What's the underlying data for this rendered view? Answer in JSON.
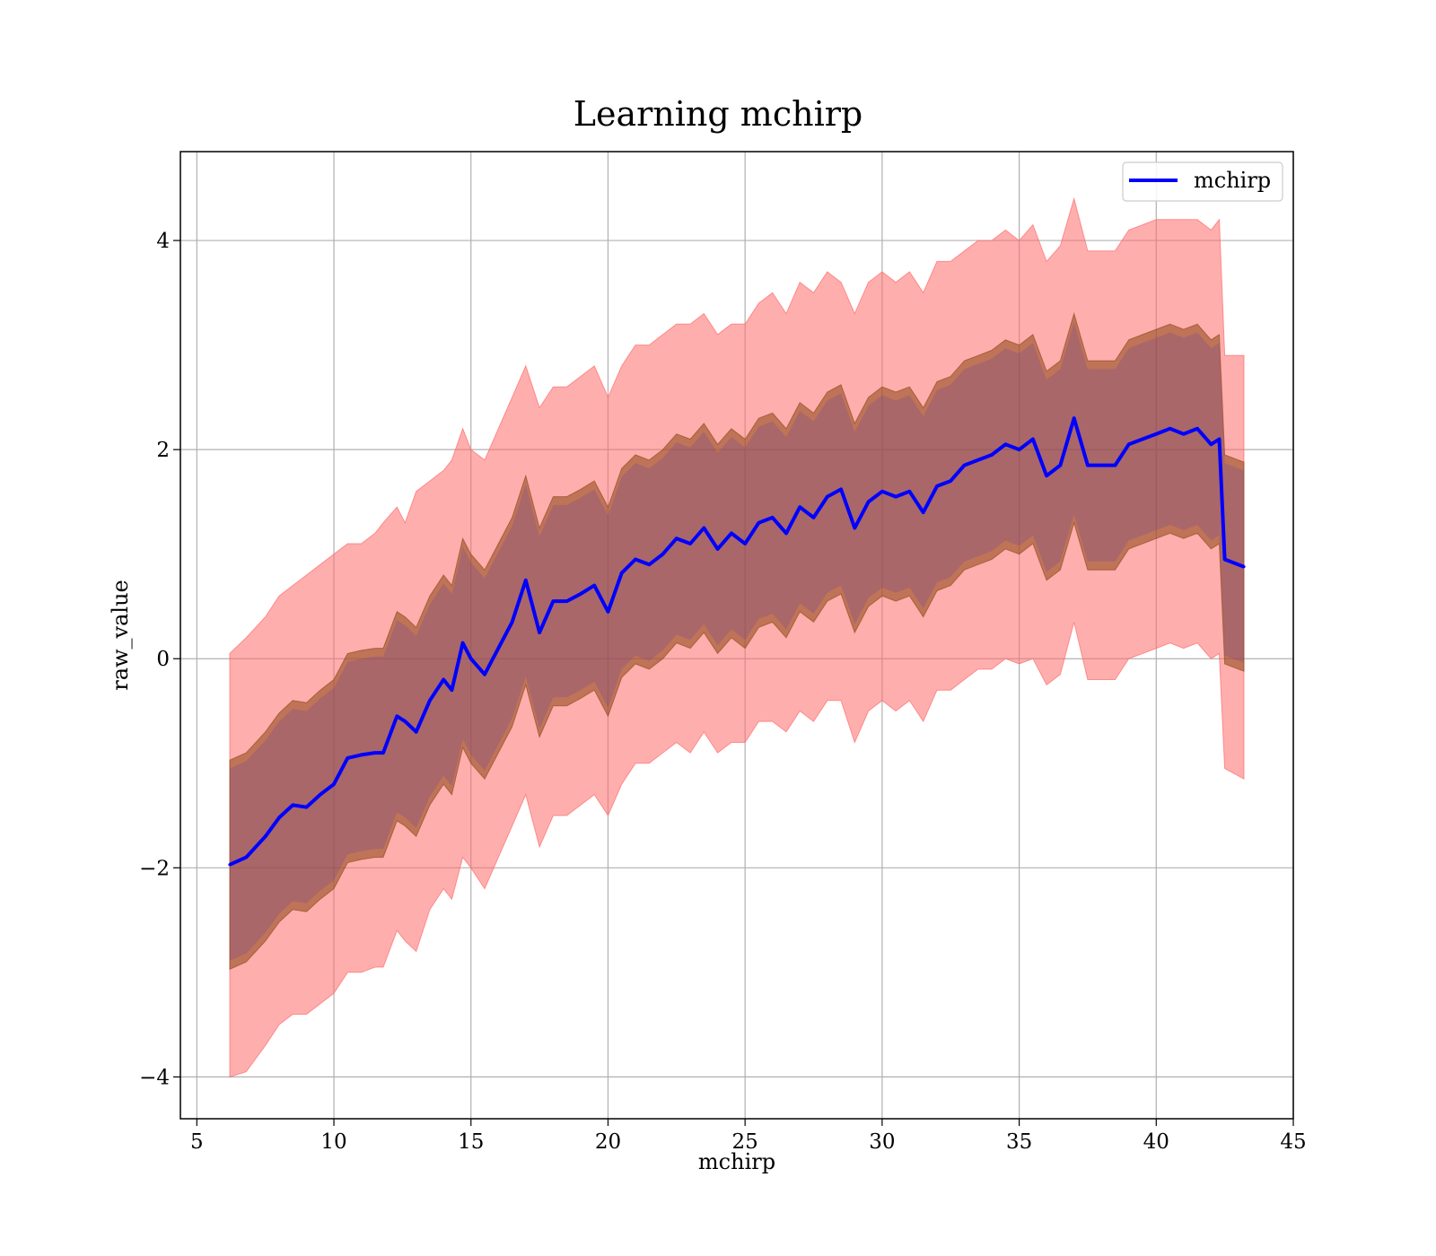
{
  "chart_data": {
    "type": "line",
    "title": "Learning mchirp",
    "xlabel": "mchirp",
    "ylabel": "raw_value",
    "xlim": [
      4.4,
      45
    ],
    "ylim": [
      -4.4,
      4.85
    ],
    "xticks": [
      5,
      10,
      15,
      20,
      25,
      30,
      35,
      40,
      45
    ],
    "xtick_labels": [
      "5",
      "10",
      "15",
      "20",
      "25",
      "30",
      "35",
      "40",
      "45"
    ],
    "yticks": [
      -4,
      -2,
      0,
      2,
      4
    ],
    "ytick_labels": [
      "−4",
      "−2",
      "0",
      "2",
      "4"
    ],
    "grid": true,
    "legend": {
      "placement": "top-right",
      "entries": [
        "mchirp"
      ]
    },
    "colors": {
      "line": "#0000ff",
      "band_outer": "#ff6b6b",
      "band_mid": "#8b4513",
      "band_inner": "#6b3fa0"
    },
    "series": [
      {
        "name": "mchirp",
        "x": [
          6.2,
          6.8,
          7.5,
          8.0,
          8.5,
          9.0,
          9.5,
          10.0,
          10.5,
          11.0,
          11.5,
          11.8,
          12.3,
          12.6,
          13.0,
          13.5,
          14.0,
          14.3,
          14.7,
          15.0,
          15.5,
          16.0,
          16.5,
          17.0,
          17.5,
          18.0,
          18.5,
          19.0,
          19.5,
          20.0,
          20.5,
          21.0,
          21.5,
          22.0,
          22.5,
          23.0,
          23.5,
          24.0,
          24.5,
          25.0,
          25.5,
          26.0,
          26.5,
          27.0,
          27.5,
          28.0,
          28.5,
          29.0,
          29.5,
          30.0,
          30.5,
          31.0,
          31.5,
          32.0,
          32.5,
          33.0,
          33.5,
          34.0,
          34.5,
          35.0,
          35.5,
          36.0,
          36.5,
          37.0,
          37.5,
          38.0,
          38.5,
          39.0,
          39.5,
          40.0,
          40.5,
          41.0,
          41.5,
          42.0,
          42.3,
          42.5,
          43.2
        ],
        "y": [
          -1.97,
          -1.9,
          -1.7,
          -1.52,
          -1.4,
          -1.42,
          -1.3,
          -1.2,
          -0.95,
          -0.92,
          -0.9,
          -0.9,
          -0.55,
          -0.6,
          -0.7,
          -0.4,
          -0.2,
          -0.3,
          0.15,
          0.0,
          -0.15,
          0.1,
          0.35,
          0.75,
          0.25,
          0.55,
          0.55,
          0.62,
          0.7,
          0.45,
          0.82,
          0.95,
          0.9,
          1.0,
          1.15,
          1.1,
          1.25,
          1.05,
          1.2,
          1.1,
          1.3,
          1.35,
          1.2,
          1.45,
          1.35,
          1.55,
          1.62,
          1.25,
          1.5,
          1.6,
          1.55,
          1.6,
          1.4,
          1.65,
          1.7,
          1.85,
          1.9,
          1.95,
          2.05,
          2.0,
          2.1,
          1.75,
          1.85,
          2.3,
          1.85,
          1.85,
          1.85,
          2.05,
          2.1,
          2.15,
          2.2,
          2.15,
          2.2,
          2.05,
          2.1,
          0.95,
          0.88
        ],
        "band_outer_upper": [
          0.05,
          0.2,
          0.4,
          0.6,
          0.7,
          0.8,
          0.9,
          1.0,
          1.1,
          1.1,
          1.2,
          1.3,
          1.45,
          1.3,
          1.6,
          1.7,
          1.8,
          1.9,
          2.2,
          2.0,
          1.9,
          2.2,
          2.5,
          2.8,
          2.4,
          2.6,
          2.6,
          2.7,
          2.8,
          2.5,
          2.8,
          3.0,
          3.0,
          3.1,
          3.2,
          3.2,
          3.3,
          3.1,
          3.2,
          3.2,
          3.4,
          3.5,
          3.3,
          3.6,
          3.5,
          3.7,
          3.6,
          3.3,
          3.6,
          3.7,
          3.6,
          3.7,
          3.5,
          3.8,
          3.8,
          3.9,
          4.0,
          4.0,
          4.1,
          4.0,
          4.15,
          3.8,
          3.95,
          4.4,
          3.9,
          3.9,
          3.9,
          4.1,
          4.15,
          4.2,
          4.2,
          4.2,
          4.2,
          4.1,
          4.2,
          2.9,
          2.9
        ],
        "band_outer_lower": [
          -4.0,
          -3.95,
          -3.7,
          -3.5,
          -3.4,
          -3.4,
          -3.3,
          -3.2,
          -3.0,
          -3.0,
          -2.95,
          -2.95,
          -2.6,
          -2.7,
          -2.8,
          -2.4,
          -2.2,
          -2.3,
          -1.9,
          -2.0,
          -2.2,
          -1.9,
          -1.6,
          -1.3,
          -1.8,
          -1.5,
          -1.5,
          -1.4,
          -1.3,
          -1.5,
          -1.2,
          -1.0,
          -1.0,
          -0.9,
          -0.8,
          -0.9,
          -0.7,
          -0.9,
          -0.8,
          -0.8,
          -0.6,
          -0.6,
          -0.7,
          -0.5,
          -0.6,
          -0.4,
          -0.4,
          -0.8,
          -0.5,
          -0.4,
          -0.5,
          -0.4,
          -0.6,
          -0.3,
          -0.3,
          -0.2,
          -0.1,
          -0.1,
          0.0,
          -0.05,
          0.0,
          -0.25,
          -0.15,
          0.35,
          -0.2,
          -0.2,
          -0.2,
          0.0,
          0.05,
          0.1,
          0.15,
          0.1,
          0.15,
          0.0,
          0.05,
          -1.05,
          -1.15
        ],
        "band_mid_upper": [
          -0.97,
          -0.9,
          -0.7,
          -0.52,
          -0.4,
          -0.42,
          -0.3,
          -0.2,
          0.05,
          0.08,
          0.1,
          0.1,
          0.45,
          0.4,
          0.3,
          0.6,
          0.8,
          0.7,
          1.15,
          1.0,
          0.85,
          1.1,
          1.35,
          1.75,
          1.25,
          1.55,
          1.55,
          1.62,
          1.7,
          1.45,
          1.82,
          1.95,
          1.9,
          2.0,
          2.15,
          2.1,
          2.25,
          2.05,
          2.2,
          2.1,
          2.3,
          2.35,
          2.2,
          2.45,
          2.35,
          2.55,
          2.62,
          2.25,
          2.5,
          2.6,
          2.55,
          2.6,
          2.4,
          2.65,
          2.7,
          2.85,
          2.9,
          2.95,
          3.05,
          3.0,
          3.1,
          2.75,
          2.85,
          3.3,
          2.85,
          2.85,
          2.85,
          3.05,
          3.1,
          3.15,
          3.2,
          3.15,
          3.2,
          3.05,
          3.1,
          1.95,
          1.88
        ],
        "band_mid_lower": [
          -2.97,
          -2.9,
          -2.7,
          -2.52,
          -2.4,
          -2.42,
          -2.3,
          -2.2,
          -1.95,
          -1.92,
          -1.9,
          -1.9,
          -1.55,
          -1.6,
          -1.7,
          -1.4,
          -1.2,
          -1.3,
          -0.85,
          -1.0,
          -1.15,
          -0.9,
          -0.65,
          -0.25,
          -0.75,
          -0.45,
          -0.45,
          -0.38,
          -0.3,
          -0.55,
          -0.18,
          -0.05,
          -0.1,
          0.0,
          0.15,
          0.1,
          0.25,
          0.05,
          0.2,
          0.1,
          0.3,
          0.35,
          0.2,
          0.45,
          0.35,
          0.55,
          0.62,
          0.25,
          0.5,
          0.6,
          0.55,
          0.6,
          0.4,
          0.65,
          0.7,
          0.85,
          0.9,
          0.95,
          1.05,
          1.0,
          1.1,
          0.75,
          0.85,
          1.3,
          0.85,
          0.85,
          0.85,
          1.05,
          1.1,
          1.15,
          1.2,
          1.15,
          1.2,
          1.05,
          1.1,
          -0.05,
          -0.12
        ]
      }
    ]
  }
}
